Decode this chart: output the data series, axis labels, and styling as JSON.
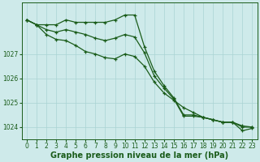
{
  "xlabel": "Graphe pression niveau de la mer (hPa)",
  "bg_color": "#ceeaea",
  "grid_color": "#aad4d4",
  "line_color": "#1a5c1a",
  "marker": "+",
  "hours": [
    0,
    1,
    2,
    3,
    4,
    5,
    6,
    7,
    8,
    9,
    10,
    11,
    12,
    13,
    14,
    15,
    16,
    17,
    18,
    19,
    20,
    21,
    22,
    23
  ],
  "series": [
    [
      1028.4,
      1028.2,
      1028.2,
      1028.2,
      1028.4,
      1028.3,
      1028.3,
      1028.3,
      1028.3,
      1028.4,
      1028.6,
      1028.6,
      1027.3,
      1026.3,
      1025.7,
      1025.2,
      1024.5,
      1024.5,
      1024.4,
      1024.3,
      1024.2,
      1024.2,
      1023.85,
      1023.95
    ],
    [
      1028.4,
      1028.2,
      1028.0,
      1027.9,
      1028.0,
      1027.9,
      1027.8,
      1027.65,
      1027.55,
      1027.65,
      1027.8,
      1027.7,
      1027.05,
      1026.1,
      1025.6,
      1025.15,
      1024.45,
      1024.45,
      1024.4,
      1024.3,
      1024.2,
      1024.2,
      1024.0,
      1024.0
    ],
    [
      1028.4,
      1028.2,
      1027.8,
      1027.6,
      1027.55,
      1027.35,
      1027.1,
      1027.0,
      1026.85,
      1026.8,
      1027.0,
      1026.9,
      1026.5,
      1025.85,
      1025.4,
      1025.1,
      1024.8,
      1024.6,
      1024.4,
      1024.3,
      1024.2,
      1024.2,
      1024.05,
      1024.0
    ]
  ],
  "ylim_bottom": 1023.5,
  "ylim_top": 1029.1,
  "yticks": [
    1024,
    1025,
    1026,
    1027
  ],
  "ytick_labels": [
    "1024",
    "1025",
    "1026",
    "1027"
  ],
  "xticks": [
    0,
    1,
    2,
    3,
    4,
    5,
    6,
    7,
    8,
    9,
    10,
    11,
    12,
    13,
    14,
    15,
    16,
    17,
    18,
    19,
    20,
    21,
    22,
    23
  ],
  "tick_fontsize": 5.5,
  "label_fontsize": 7.0,
  "label_fontweight": "bold",
  "linewidth": 0.9,
  "markersize": 3.5,
  "markeredgewidth": 0.9
}
